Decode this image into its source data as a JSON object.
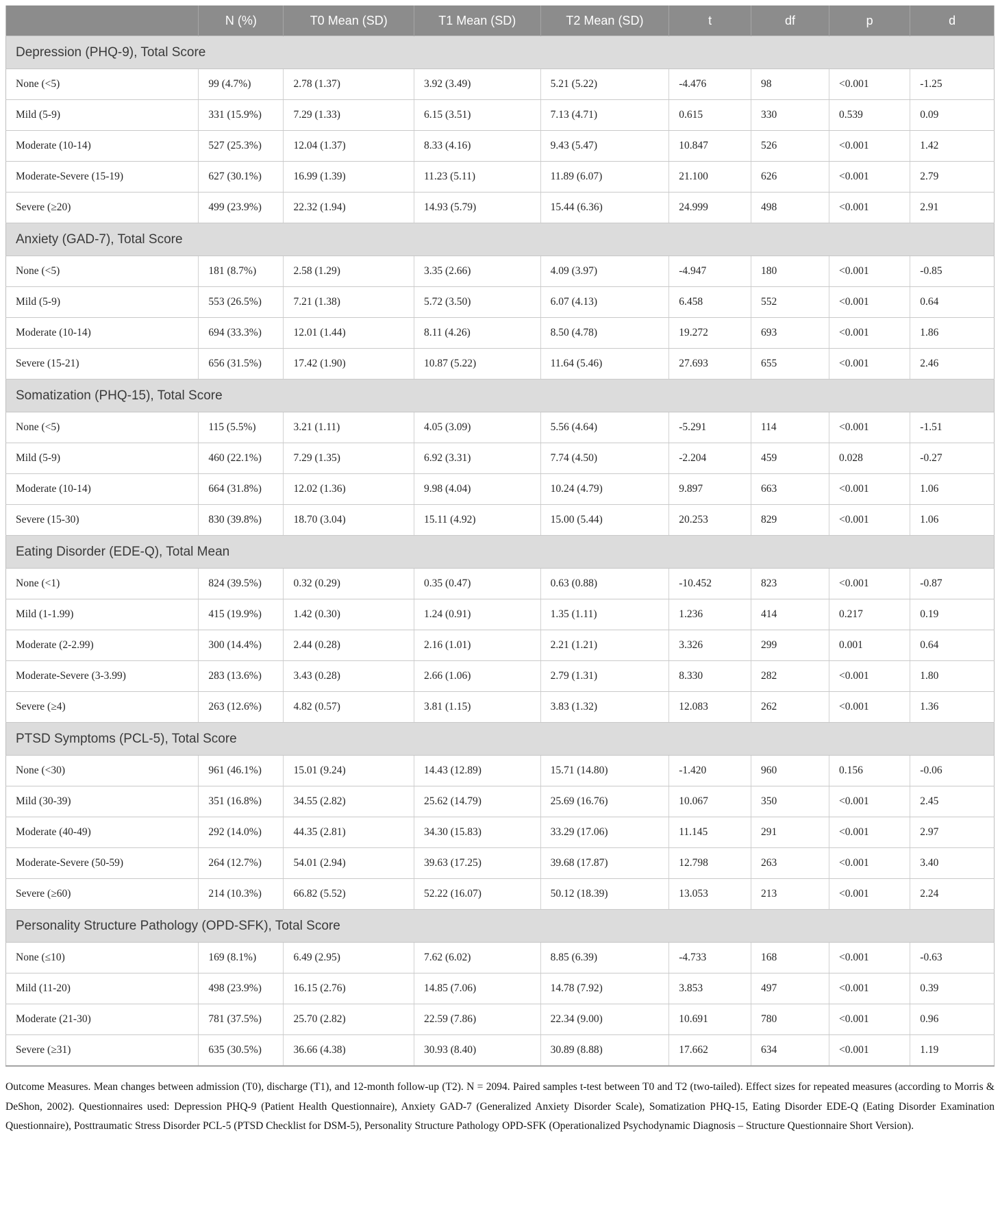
{
  "table": {
    "columns": [
      "",
      "N (%)",
      "T0 Mean (SD)",
      "T1 Mean (SD)",
      "T2 Mean (SD)",
      "t",
      "df",
      "p",
      "d"
    ],
    "sections": [
      {
        "title": "Depression (PHQ-9), Total Score",
        "rows": [
          [
            "None (<5)",
            "99 (4.7%)",
            "2.78 (1.37)",
            "3.92 (3.49)",
            "5.21 (5.22)",
            "-4.476",
            "98",
            "<0.001",
            "-1.25"
          ],
          [
            "Mild (5-9)",
            "331 (15.9%)",
            "7.29 (1.33)",
            "6.15 (3.51)",
            "7.13 (4.71)",
            "0.615",
            "330",
            "0.539",
            "0.09"
          ],
          [
            "Moderate (10-14)",
            "527 (25.3%)",
            "12.04 (1.37)",
            "8.33 (4.16)",
            "9.43 (5.47)",
            "10.847",
            "526",
            "<0.001",
            "1.42"
          ],
          [
            "Moderate-Severe (15-19)",
            "627 (30.1%)",
            "16.99 (1.39)",
            "11.23 (5.11)",
            "11.89 (6.07)",
            "21.100",
            "626",
            "<0.001",
            "2.79"
          ],
          [
            "Severe (≥20)",
            "499 (23.9%)",
            "22.32 (1.94)",
            "14.93 (5.79)",
            "15.44 (6.36)",
            "24.999",
            "498",
            "<0.001",
            "2.91"
          ]
        ]
      },
      {
        "title": "Anxiety (GAD-7), Total Score",
        "rows": [
          [
            "None (<5)",
            "181 (8.7%)",
            "2.58 (1.29)",
            "3.35 (2.66)",
            "4.09 (3.97)",
            "-4.947",
            "180",
            "<0.001",
            "-0.85"
          ],
          [
            "Mild (5-9)",
            "553 (26.5%)",
            "7.21 (1.38)",
            "5.72 (3.50)",
            "6.07 (4.13)",
            "6.458",
            "552",
            "<0.001",
            "0.64"
          ],
          [
            "Moderate (10-14)",
            "694 (33.3%)",
            "12.01 (1.44)",
            "8.11 (4.26)",
            "8.50 (4.78)",
            "19.272",
            "693",
            "<0.001",
            "1.86"
          ],
          [
            "Severe (15-21)",
            "656 (31.5%)",
            "17.42 (1.90)",
            "10.87 (5.22)",
            "11.64 (5.46)",
            "27.693",
            "655",
            "<0.001",
            "2.46"
          ]
        ]
      },
      {
        "title": "Somatization (PHQ-15), Total Score",
        "rows": [
          [
            "None (<5)",
            "115 (5.5%)",
            "3.21 (1.11)",
            "4.05 (3.09)",
            "5.56 (4.64)",
            "-5.291",
            "114",
            "<0.001",
            "-1.51"
          ],
          [
            "Mild (5-9)",
            "460 (22.1%)",
            "7.29 (1.35)",
            "6.92 (3.31)",
            "7.74 (4.50)",
            "-2.204",
            "459",
            "0.028",
            "-0.27"
          ],
          [
            "Moderate (10-14)",
            "664 (31.8%)",
            "12.02 (1.36)",
            "9.98 (4.04)",
            "10.24 (4.79)",
            "9.897",
            "663",
            "<0.001",
            "1.06"
          ],
          [
            "Severe (15-30)",
            "830 (39.8%)",
            "18.70 (3.04)",
            "15.11 (4.92)",
            "15.00 (5.44)",
            "20.253",
            "829",
            "<0.001",
            "1.06"
          ]
        ]
      },
      {
        "title": "Eating Disorder (EDE-Q), Total Mean",
        "rows": [
          [
            "None (<1)",
            "824 (39.5%)",
            "0.32 (0.29)",
            "0.35 (0.47)",
            "0.63 (0.88)",
            "-10.452",
            "823",
            "<0.001",
            "-0.87"
          ],
          [
            "Mild (1-1.99)",
            "415 (19.9%)",
            "1.42 (0.30)",
            "1.24 (0.91)",
            "1.35 (1.11)",
            "1.236",
            "414",
            "0.217",
            "0.19"
          ],
          [
            "Moderate (2-2.99)",
            "300 (14.4%)",
            "2.44 (0.28)",
            "2.16 (1.01)",
            "2.21 (1.21)",
            "3.326",
            "299",
            "0.001",
            "0.64"
          ],
          [
            "Moderate-Severe (3-3.99)",
            "283 (13.6%)",
            "3.43 (0.28)",
            "2.66 (1.06)",
            "2.79 (1.31)",
            "8.330",
            "282",
            "<0.001",
            "1.80"
          ],
          [
            "Severe (≥4)",
            "263 (12.6%)",
            "4.82 (0.57)",
            "3.81 (1.15)",
            "3.83 (1.32)",
            "12.083",
            "262",
            "<0.001",
            "1.36"
          ]
        ]
      },
      {
        "title": "PTSD Symptoms (PCL-5), Total Score",
        "rows": [
          [
            "None (<30)",
            "961 (46.1%)",
            "15.01 (9.24)",
            "14.43 (12.89)",
            "15.71 (14.80)",
            "-1.420",
            "960",
            "0.156",
            "-0.06"
          ],
          [
            "Mild (30-39)",
            "351 (16.8%)",
            "34.55 (2.82)",
            "25.62 (14.79)",
            "25.69 (16.76)",
            "10.067",
            "350",
            "<0.001",
            "2.45"
          ],
          [
            "Moderate (40-49)",
            "292 (14.0%)",
            "44.35 (2.81)",
            "34.30 (15.83)",
            "33.29 (17.06)",
            "11.145",
            "291",
            "<0.001",
            "2.97"
          ],
          [
            "Moderate-Severe (50-59)",
            "264 (12.7%)",
            "54.01 (2.94)",
            "39.63 (17.25)",
            "39.68 (17.87)",
            "12.798",
            "263",
            "<0.001",
            "3.40"
          ],
          [
            "Severe (≥60)",
            "214 (10.3%)",
            "66.82 (5.52)",
            "52.22 (16.07)",
            "50.12 (18.39)",
            "13.053",
            "213",
            "<0.001",
            "2.24"
          ]
        ]
      },
      {
        "title": "Personality Structure Pathology (OPD-SFK), Total Score",
        "rows": [
          [
            "None (≤10)",
            "169 (8.1%)",
            "6.49 (2.95)",
            "7.62 (6.02)",
            "8.85 (6.39)",
            "-4.733",
            "168",
            "<0.001",
            "-0.63"
          ],
          [
            "Mild (11-20)",
            "498 (23.9%)",
            "16.15 (2.76)",
            "14.85 (7.06)",
            "14.78 (7.92)",
            "3.853",
            "497",
            "<0.001",
            "0.39"
          ],
          [
            "Moderate (21-30)",
            "781 (37.5%)",
            "25.70 (2.82)",
            "22.59 (7.86)",
            "22.34 (9.00)",
            "10.691",
            "780",
            "<0.001",
            "0.96"
          ],
          [
            "Severe (≥31)",
            "635 (30.5%)",
            "36.66 (4.38)",
            "30.93 (8.40)",
            "30.89 (8.88)",
            "17.662",
            "634",
            "<0.001",
            "1.19"
          ]
        ]
      }
    ]
  },
  "footnote": "Outcome Measures. Mean changes between admission (T0), discharge (T1), and 12-month follow-up (T2). N = 2094. Paired samples t-test between T0 and T2 (two-tailed). Effect sizes for repeated measures (according to Morris & DeShon, 2002). Questionnaires used: Depression PHQ-9 (Patient Health Questionnaire), Anxiety GAD-7 (Generalized Anxiety Disorder Scale), Somatization PHQ-15, Eating Disorder EDE-Q (Eating Disorder Examination Questionnaire), Posttraumatic Stress Disorder PCL-5 (PTSD Checklist for DSM-5), Personality Structure Pathology OPD-SFK (Operationalized Psychodynamic Diagnosis – Structure Questionnaire Short Version)."
}
